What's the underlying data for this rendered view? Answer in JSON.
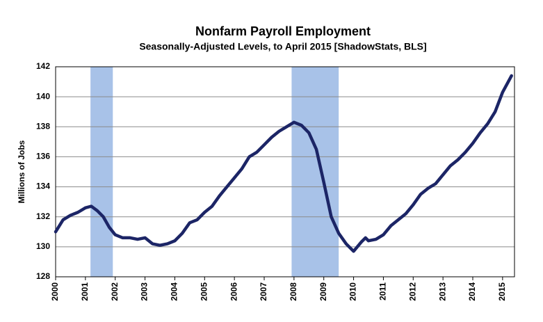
{
  "chart_data": {
    "type": "line",
    "title": "Nonfarm Payroll Employment",
    "subtitle": "Seasonally-Adjusted Levels, to April 2015 [ShadowStats, BLS]",
    "y_label": "Millions of Jobs",
    "x": [
      2000.0,
      2000.25,
      2000.5,
      2000.75,
      2001.0,
      2001.2,
      2001.4,
      2001.6,
      2001.8,
      2002.0,
      2002.25,
      2002.5,
      2002.75,
      2003.0,
      2003.25,
      2003.5,
      2003.75,
      2004.0,
      2004.25,
      2004.5,
      2004.75,
      2005.0,
      2005.25,
      2005.5,
      2005.75,
      2006.0,
      2006.25,
      2006.5,
      2006.75,
      2007.0,
      2007.25,
      2007.5,
      2007.75,
      2008.0,
      2008.25,
      2008.5,
      2008.75,
      2009.0,
      2009.25,
      2009.5,
      2009.75,
      2010.0,
      2010.25,
      2010.4,
      2010.5,
      2010.75,
      2011.0,
      2011.25,
      2011.5,
      2011.75,
      2012.0,
      2012.25,
      2012.5,
      2012.75,
      2013.0,
      2013.25,
      2013.5,
      2013.75,
      2014.0,
      2014.25,
      2014.5,
      2014.75,
      2015.0,
      2015.3
    ],
    "series": [
      {
        "name": "Nonfarm Payroll Employment",
        "color": "#1c2566",
        "values": [
          131.0,
          131.8,
          132.1,
          132.3,
          132.6,
          132.7,
          132.4,
          132.0,
          131.3,
          130.8,
          130.6,
          130.6,
          130.5,
          130.6,
          130.2,
          130.1,
          130.2,
          130.4,
          130.9,
          131.6,
          131.8,
          132.3,
          132.7,
          133.4,
          134.0,
          134.6,
          135.2,
          136.0,
          136.3,
          136.8,
          137.3,
          137.7,
          138.0,
          138.3,
          138.1,
          137.6,
          136.5,
          134.3,
          132.0,
          130.9,
          130.2,
          129.7,
          130.3,
          130.6,
          130.4,
          130.5,
          130.8,
          131.4,
          131.8,
          132.2,
          132.8,
          133.5,
          133.9,
          134.2,
          134.8,
          135.4,
          135.8,
          136.3,
          136.9,
          137.6,
          138.2,
          139.0,
          140.3,
          141.4
        ]
      }
    ],
    "shaded_periods": [
      [
        2001.17,
        2001.92
      ],
      [
        2007.92,
        2009.5
      ]
    ],
    "shade_color": "#a8c2e8",
    "xlim": [
      2000,
      2015.4
    ],
    "xticks": [
      2000,
      2001,
      2002,
      2003,
      2004,
      2005,
      2006,
      2007,
      2008,
      2009,
      2010,
      2011,
      2012,
      2013,
      2014,
      2015
    ],
    "ylim": [
      128,
      142
    ],
    "yticks": [
      128,
      130,
      132,
      134,
      136,
      138,
      140,
      142
    ],
    "grid": true
  }
}
